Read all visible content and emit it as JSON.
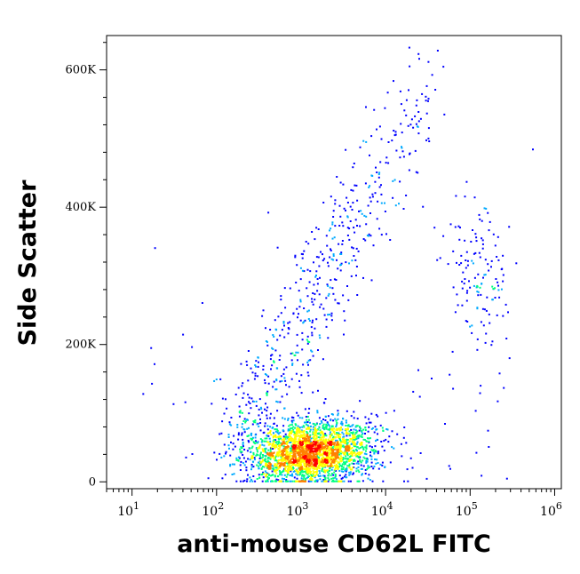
{
  "chart_data": {
    "type": "scatter",
    "title": "",
    "xlabel": "anti-mouse CD62L FITC",
    "ylabel": "Side Scatter",
    "x_scale": "log",
    "xlim": [
      5,
      1200000
    ],
    "ylim": [
      -10000,
      650000
    ],
    "x_ticks": [
      {
        "value": 10,
        "base": "10",
        "exp": "1"
      },
      {
        "value": 100,
        "base": "10",
        "exp": "2"
      },
      {
        "value": 1000,
        "base": "10",
        "exp": "3"
      },
      {
        "value": 10000,
        "base": "10",
        "exp": "4"
      },
      {
        "value": 100000,
        "base": "10",
        "exp": "5"
      },
      {
        "value": 1000000,
        "base": "10",
        "exp": "6"
      }
    ],
    "y_ticks": [
      {
        "value": 0,
        "label": "0"
      },
      {
        "value": 200000,
        "label": "200K"
      },
      {
        "value": 400000,
        "label": "400K"
      },
      {
        "value": 600000,
        "label": "600K"
      }
    ],
    "grid": false,
    "legend": "none",
    "colormap": [
      "#0000ff",
      "#00aaff",
      "#00ff80",
      "#ffff00",
      "#ff8000",
      "#ff0000"
    ],
    "populations": [
      {
        "name_hint": "main",
        "x_center": 1300,
        "y_center": 40000,
        "count": 2600
      },
      {
        "name_hint": "upper diagonal",
        "x_start": 200,
        "x_end": 30000,
        "y_start": 60000,
        "y_end": 580000,
        "count": 600
      },
      {
        "name_hint": "right cluster",
        "x_center": 120000,
        "y_center": 300000,
        "count": 140
      }
    ]
  }
}
